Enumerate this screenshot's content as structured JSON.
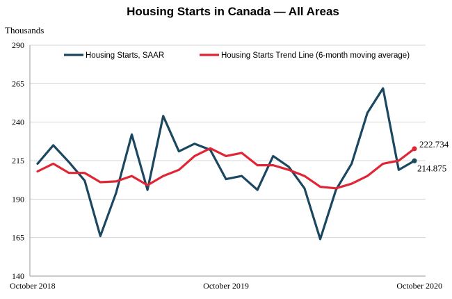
{
  "chart_data": {
    "type": "line",
    "title": "Housing Starts in Canada — All Areas",
    "ylabel": "Thousands",
    "xlabel": "",
    "ylim": [
      140,
      290
    ],
    "yticks": [
      "140",
      "165",
      "190",
      "215",
      "240",
      "265",
      "290"
    ],
    "xtick_labels": [
      "October 2018",
      "October 2019",
      "October 2020"
    ],
    "grid": true,
    "legend_position": "top",
    "x": [
      "Oct 2018",
      "Nov 2018",
      "Dec 2018",
      "Jan 2019",
      "Feb 2019",
      "Mar 2019",
      "Apr 2019",
      "May 2019",
      "Jun 2019",
      "Jul 2019",
      "Aug 2019",
      "Sep 2019",
      "Oct 2019",
      "Nov 2019",
      "Dec 2019",
      "Jan 2020",
      "Feb 2020",
      "Mar 2020",
      "Apr 2020",
      "May 2020",
      "Jun 2020",
      "Jul 2020",
      "Aug 2020",
      "Sep 2020",
      "Oct 2020"
    ],
    "series": [
      {
        "name": "Housing Starts, SAAR",
        "color": "#1b4760",
        "values": [
          213,
          225,
          214,
          202,
          166,
          194,
          232,
          196,
          244,
          221,
          226,
          222,
          203,
          205,
          196,
          218,
          211,
          197,
          164,
          196,
          213,
          246,
          262,
          209,
          214.875
        ]
      },
      {
        "name": "Housing Starts Trend Line (6-month moving average)",
        "color": "#e02535",
        "values": [
          208,
          213,
          207,
          207,
          201,
          201.5,
          205,
          199,
          205,
          209,
          218,
          223,
          218,
          220,
          212,
          212,
          209,
          205,
          198,
          197,
          200,
          205,
          213,
          215,
          222.734
        ]
      }
    ],
    "end_labels": [
      "222.734",
      "214.875"
    ]
  }
}
